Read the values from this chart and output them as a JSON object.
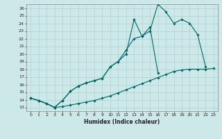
{
  "xlabel": "Humidex (Indice chaleur)",
  "bg_color": "#cde8e8",
  "line_color": "#006666",
  "grid_color": "#a8cccc",
  "xlim": [
    -0.5,
    23.5
  ],
  "ylim": [
    12.5,
    26.5
  ],
  "yticks": [
    13,
    14,
    15,
    16,
    17,
    18,
    19,
    20,
    21,
    22,
    23,
    24,
    25,
    26
  ],
  "xticks": [
    0,
    1,
    2,
    3,
    4,
    5,
    6,
    7,
    8,
    9,
    10,
    11,
    12,
    13,
    14,
    15,
    16,
    17,
    18,
    19,
    20,
    21,
    22,
    23
  ],
  "line1_x": [
    0,
    1,
    2,
    3,
    4,
    5,
    6,
    7,
    8,
    9,
    10,
    11,
    12,
    13,
    14,
    15,
    16,
    17,
    18,
    19,
    20,
    21,
    22,
    23
  ],
  "line1_y": [
    14.2,
    13.9,
    13.5,
    13.0,
    13.1,
    13.3,
    13.5,
    13.7,
    13.9,
    14.2,
    14.5,
    14.9,
    15.3,
    15.7,
    16.1,
    16.5,
    16.9,
    17.3,
    17.7,
    17.9,
    18.0,
    18.0,
    18.0,
    18.1
  ],
  "line2_x": [
    0,
    1,
    2,
    3,
    4,
    5,
    6,
    7,
    8,
    9,
    10,
    11,
    12,
    13,
    14,
    15,
    16,
    17,
    18,
    19,
    20,
    21,
    22,
    23
  ],
  "line2_y": [
    14.2,
    13.9,
    13.5,
    13.0,
    13.9,
    15.1,
    15.8,
    16.2,
    16.5,
    16.8,
    18.3,
    19.0,
    20.5,
    22.0,
    22.3,
    23.0,
    26.5,
    25.5,
    24.0,
    24.5,
    24.0,
    22.5,
    18.3,
    null
  ],
  "line3_x": [
    0,
    1,
    2,
    3,
    4,
    5,
    6,
    7,
    8,
    9,
    10,
    11,
    12,
    13,
    14,
    15,
    16,
    17,
    18,
    19,
    20,
    21,
    22,
    23
  ],
  "line3_y": [
    14.2,
    13.9,
    13.5,
    13.0,
    13.9,
    15.1,
    15.8,
    16.2,
    16.5,
    16.8,
    18.3,
    19.0,
    20.0,
    24.5,
    22.3,
    23.5,
    17.5,
    null,
    null,
    null,
    null,
    null,
    null,
    null
  ]
}
